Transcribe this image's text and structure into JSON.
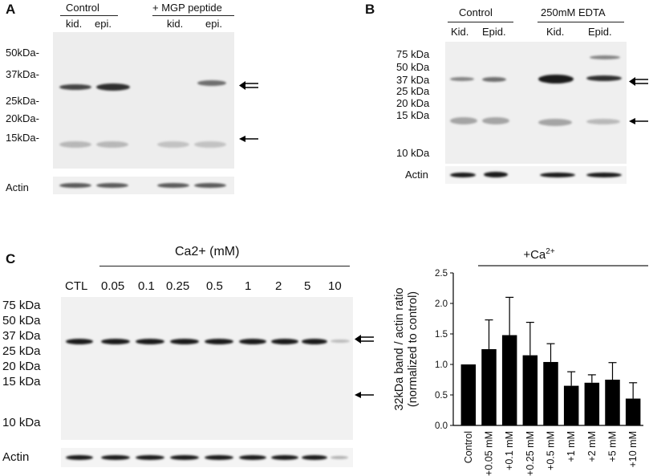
{
  "panelA": {
    "letter": "A",
    "group1": "Control",
    "group2": "+ MGP peptide",
    "lanes": [
      "kid.",
      "epi.",
      "kid.",
      "epi."
    ],
    "markers": [
      "50kDa-",
      "37kDa-",
      "25kDa-",
      "20kDa-",
      "15kDa-"
    ],
    "actin": "Actin"
  },
  "panelB": {
    "letter": "B",
    "group1": "Control",
    "group2": "250mM EDTA",
    "lanes": [
      "Kid.",
      "Epid.",
      "Kid.",
      "Epid."
    ],
    "markers": [
      "75 kDa",
      "50 kDa",
      "37 kDa",
      "25 kDa",
      "20 kDa",
      "15 kDa",
      "10 kDa"
    ],
    "actin": "Actin"
  },
  "panelC": {
    "letter": "C",
    "header": "Ca2+ (mM)",
    "lanes": [
      "CTL",
      "0.05",
      "0.1",
      "0.25",
      "0.5",
      "1",
      "2",
      "5",
      "10"
    ],
    "markers": [
      "75 kDa",
      "50 kDa",
      "37 kDa",
      "25 kDa",
      "20 kDa",
      "15 kDa",
      "10 kDa"
    ],
    "actin": "Actin"
  },
  "chart_data": {
    "type": "bar",
    "title": "",
    "group_label": "+Ca2+",
    "ylabel": "32kDa band / actin ratio (normalized to control)",
    "ylabel_lines": [
      "32kDa band / actin ratio",
      "(normalized to control)"
    ],
    "categories": [
      "Control",
      "+0.05 mM",
      "+0.1 mM",
      "+0.25 mM",
      "+0.5 mM",
      "+1 mM",
      "+2 mM",
      "+5 mM",
      "+10 mM"
    ],
    "values": [
      1.0,
      1.25,
      1.48,
      1.15,
      1.04,
      0.65,
      0.7,
      0.75,
      0.44
    ],
    "errors": [
      0.0,
      0.48,
      0.62,
      0.54,
      0.3,
      0.23,
      0.13,
      0.28,
      0.26
    ],
    "ylim": [
      0,
      2.5
    ],
    "yticks": [
      "0.0",
      "0.5",
      "1.0",
      "1.5",
      "2.0",
      "2.5"
    ],
    "bar_color": "#000000",
    "grid": false
  }
}
